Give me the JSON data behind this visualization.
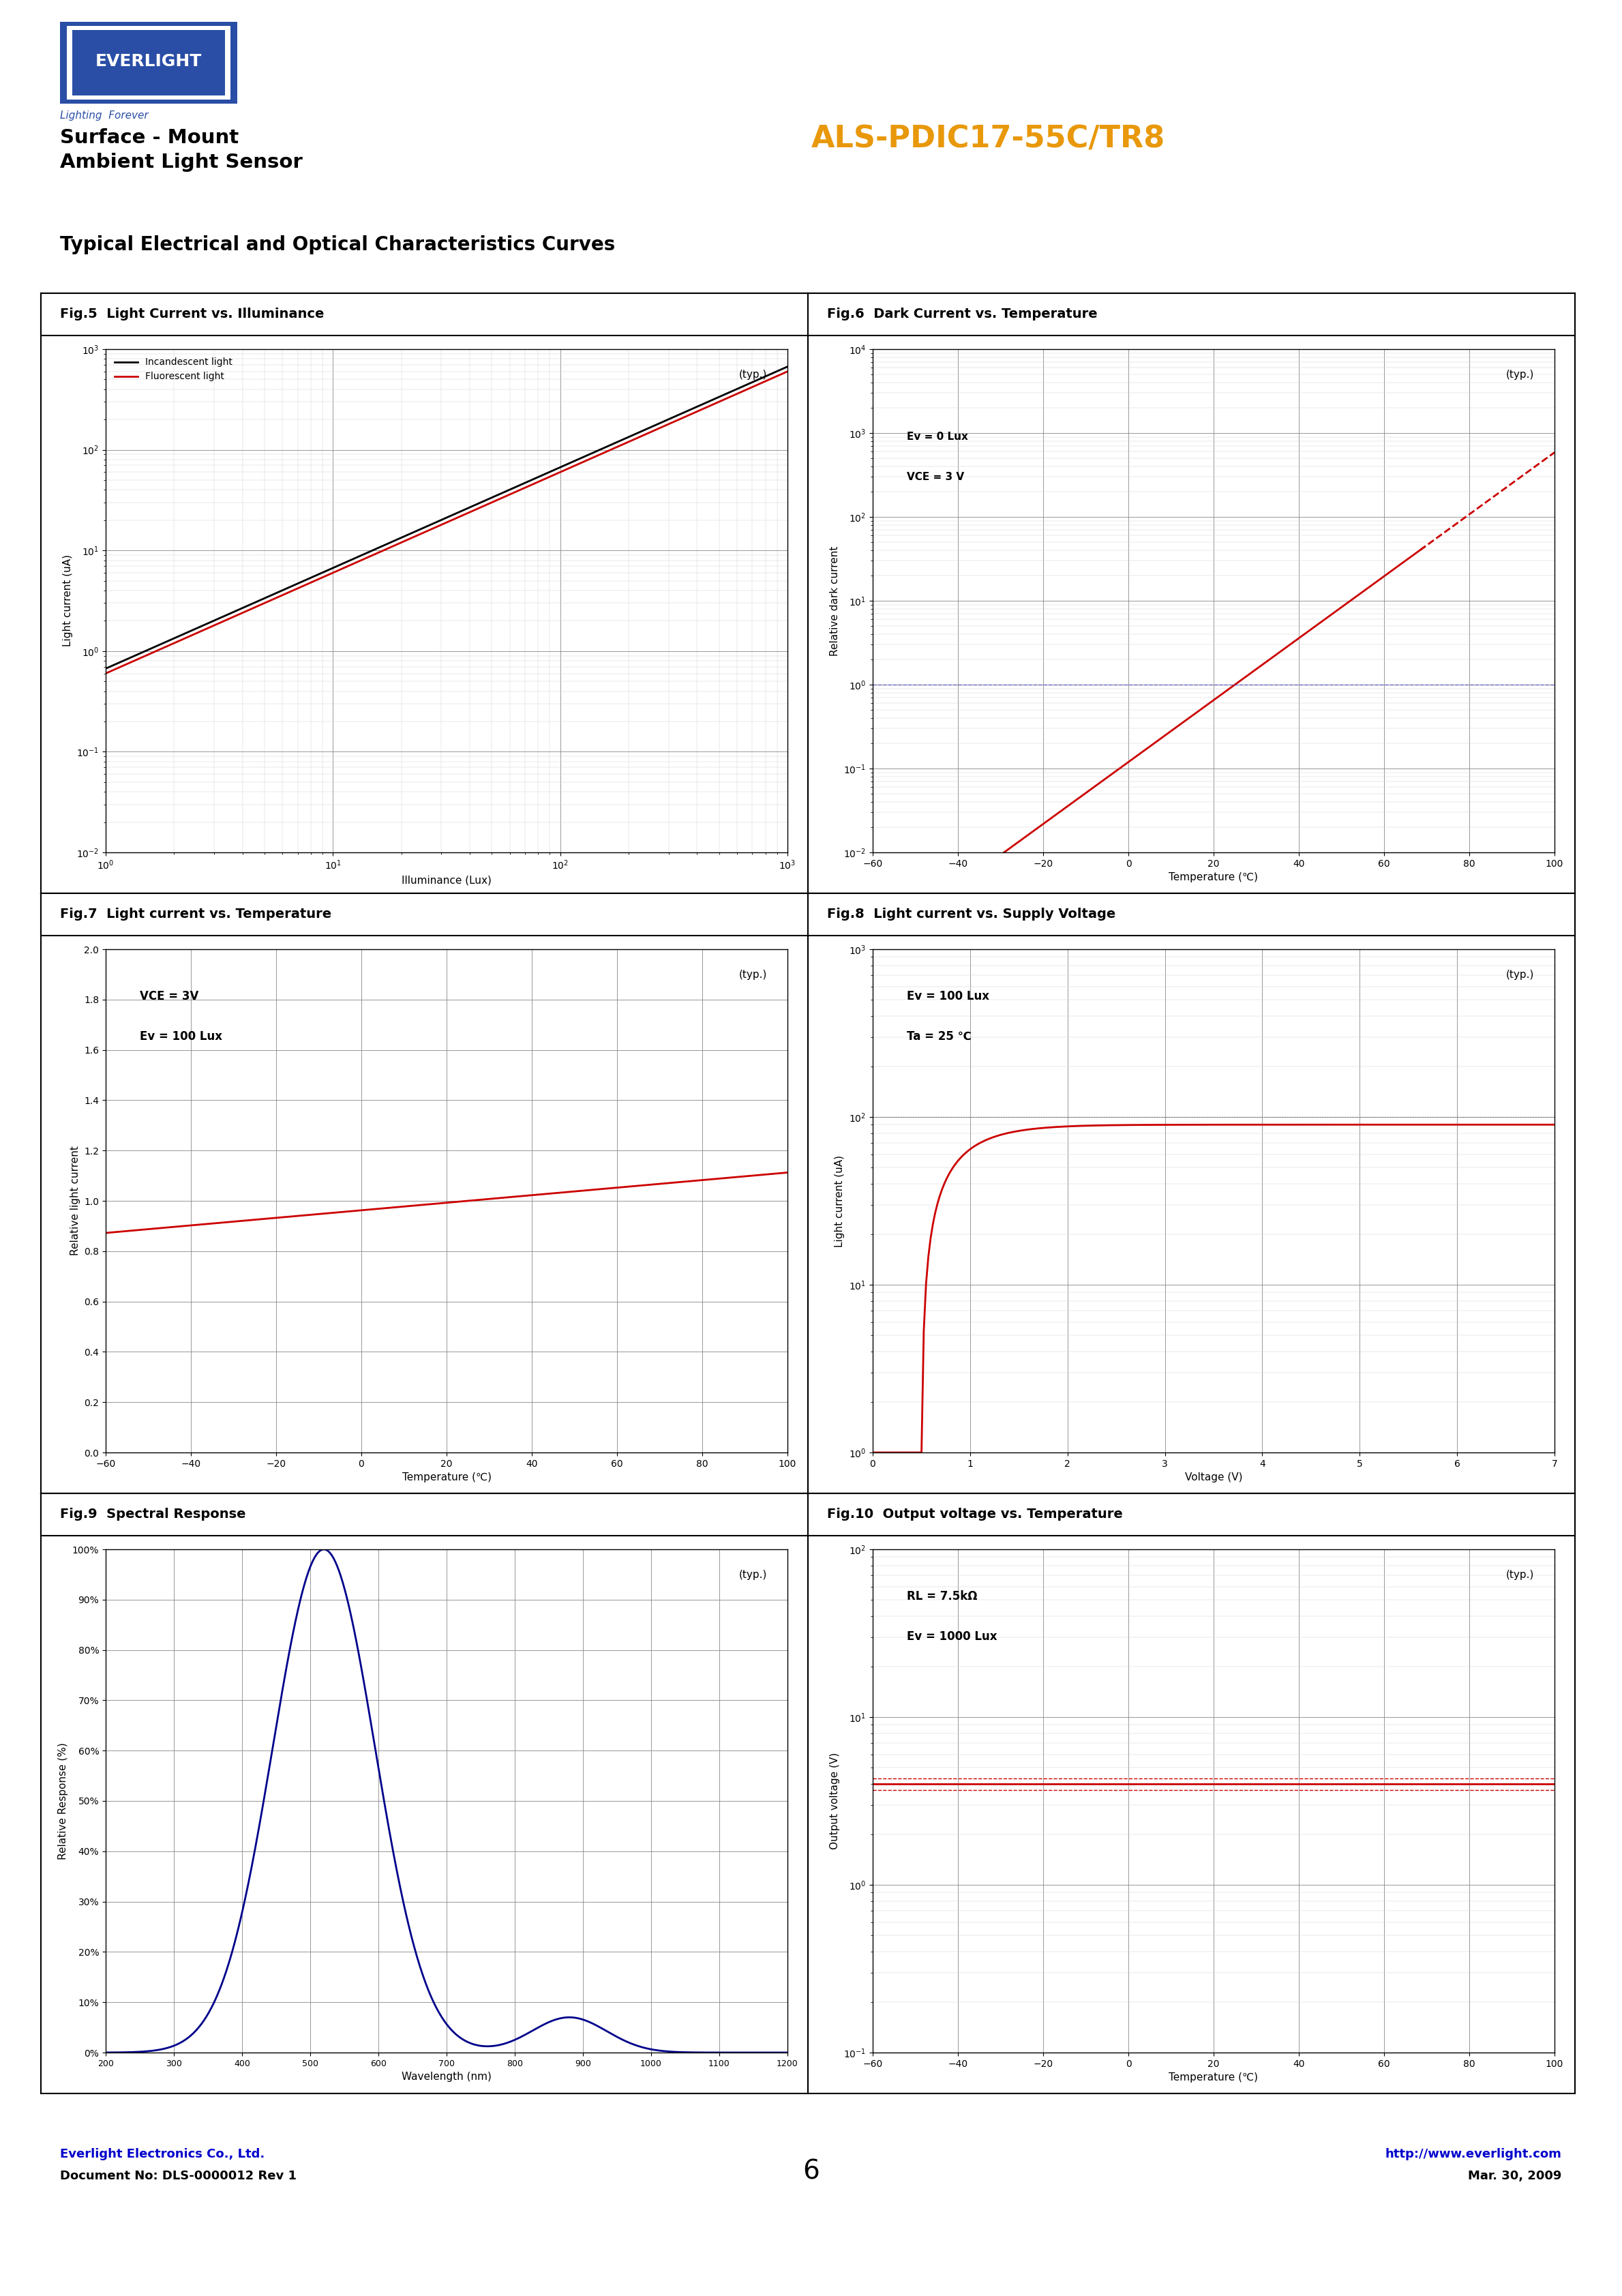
{
  "page_bg": "#ffffff",
  "logo_text": "EVERLIGHT",
  "logo_subtitle": "Lighting  Forever",
  "logo_bg": "#2a4ea6",
  "header_left_line1": "Surface - Mount",
  "header_left_line2": "Ambient Light Sensor",
  "header_right": "ALS-PDIC17-55C/TR8",
  "header_right_color": "#e8980a",
  "section_title": "Typical Electrical and Optical Characteristics Curves",
  "footer_left_line1": "Everlight Electronics Co., Ltd.",
  "footer_left_line2": "Document No: DLS-0000012 Rev 1",
  "footer_left_color": "#0000cc",
  "footer_center": "6",
  "footer_right_line1": "http://www.everlight.com",
  "footer_right_line2": "Mar. 30, 2009",
  "footer_right_color": "#0000cc",
  "fig5_title": "Fig.5  Light Current vs. Illuminance",
  "fig5_xlabel": "Illuminance (Lux)",
  "fig5_ylabel": "Light current (uA)",
  "fig5_typ": "(typ.)",
  "fig5_legend1": "Incandescent light",
  "fig5_legend2": "Fluorescent light",
  "fig6_title": "Fig.6  Dark Current vs. Temperature",
  "fig6_xlabel": "Temperature (℃)",
  "fig6_ylabel": "Relative dark current",
  "fig6_typ": "(typ.)",
  "fig6_ann1": "Ev = 0 Lux",
  "fig6_ann2": "VCE = 3 V",
  "fig7_title": "Fig.7  Light current vs. Temperature",
  "fig7_xlabel": "Temperature (℃)",
  "fig7_ylabel": "Relative light current",
  "fig7_typ": "(typ.)",
  "fig7_ann1": "VCE = 3V",
  "fig7_ann2": "Ev = 100 Lux",
  "fig8_title": "Fig.8  Light current vs. Supply Voltage",
  "fig8_xlabel": "Voltage (V)",
  "fig8_ylabel": "Light current (uA)",
  "fig8_typ": "(typ.)",
  "fig8_ann1": "Ev = 100 Lux",
  "fig8_ann2": "Ta = 25 ℃",
  "fig9_title": "Fig.9  Spectral Response",
  "fig9_xlabel": "Wavelength (nm)",
  "fig9_ylabel": "Relative Response (%)",
  "fig9_typ": "(typ.)",
  "fig10_title": "Fig.10  Output voltage vs. Temperature",
  "fig10_xlabel": "Temperature (℃)",
  "fig10_ylabel": "Output voltage (V)",
  "fig10_typ": "(typ.)",
  "fig10_ann1": "RL = 7.5kΩ",
  "fig10_ann2": "Ev = 1000 Lux"
}
